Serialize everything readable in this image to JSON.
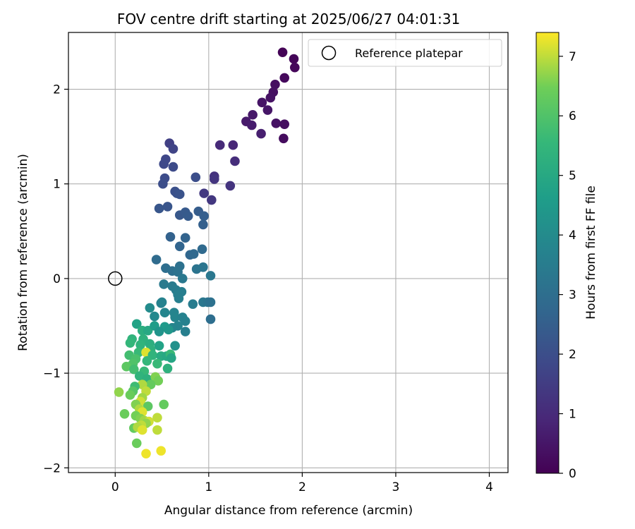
{
  "chart_data": {
    "type": "scatter",
    "title": "FOV centre drift starting at 2025/06/27 04:01:31",
    "xlabel": "Angular distance from reference (arcmin)",
    "ylabel": "Rotation from reference (arcmin)",
    "xlim": [
      -0.5,
      4.2
    ],
    "ylim": [
      -2.05,
      2.6
    ],
    "xticks": [
      0,
      1,
      2,
      3,
      4
    ],
    "xtick_labels": [
      "0",
      "1",
      "2",
      "3",
      "4"
    ],
    "yticks": [
      -2,
      -1,
      0,
      1,
      2
    ],
    "ytick_labels": [
      "−2",
      "−1",
      "0",
      "1",
      "2"
    ],
    "grid": true,
    "legend": {
      "location": "top-right",
      "entries": [
        "Reference platepar"
      ]
    },
    "colormap": "viridis",
    "colorbar": {
      "label": "Hours from first FF file",
      "range": [
        0,
        7.4
      ],
      "ticks": [
        0,
        1,
        2,
        3,
        4,
        5,
        6,
        7
      ],
      "tick_labels": [
        "0",
        "1",
        "2",
        "3",
        "4",
        "5",
        "6",
        "7"
      ]
    },
    "reference_point": {
      "x": 0,
      "y": 0,
      "marker": "open-circle"
    },
    "points": [
      {
        "x": 1.79,
        "y": 2.39,
        "c": 0.05
      },
      {
        "x": 1.91,
        "y": 2.32,
        "c": 0.1
      },
      {
        "x": 1.92,
        "y": 2.23,
        "c": 0.15
      },
      {
        "x": 1.81,
        "y": 2.12,
        "c": 0.2
      },
      {
        "x": 1.71,
        "y": 2.05,
        "c": 0.3
      },
      {
        "x": 1.69,
        "y": 1.97,
        "c": 0.35
      },
      {
        "x": 1.66,
        "y": 1.91,
        "c": 0.4
      },
      {
        "x": 1.57,
        "y": 1.86,
        "c": 0.45
      },
      {
        "x": 1.63,
        "y": 1.78,
        "c": 0.5
      },
      {
        "x": 1.47,
        "y": 1.73,
        "c": 0.55
      },
      {
        "x": 1.4,
        "y": 1.66,
        "c": 0.6
      },
      {
        "x": 1.46,
        "y": 1.62,
        "c": 0.65
      },
      {
        "x": 1.72,
        "y": 1.64,
        "c": 0.4
      },
      {
        "x": 1.81,
        "y": 1.63,
        "c": 0.3
      },
      {
        "x": 1.8,
        "y": 1.48,
        "c": 0.25
      },
      {
        "x": 1.56,
        "y": 1.53,
        "c": 0.7
      },
      {
        "x": 1.12,
        "y": 1.41,
        "c": 1.0
      },
      {
        "x": 1.26,
        "y": 1.41,
        "c": 0.9
      },
      {
        "x": 1.28,
        "y": 1.24,
        "c": 1.1
      },
      {
        "x": 1.06,
        "y": 1.08,
        "c": 1.2
      },
      {
        "x": 1.06,
        "y": 1.05,
        "c": 1.3
      },
      {
        "x": 1.23,
        "y": 0.98,
        "c": 1.25
      },
      {
        "x": 1.03,
        "y": 0.83,
        "c": 1.35
      },
      {
        "x": 0.95,
        "y": 0.9,
        "c": 1.4
      },
      {
        "x": 0.58,
        "y": 1.43,
        "c": 1.6
      },
      {
        "x": 0.62,
        "y": 1.37,
        "c": 1.7
      },
      {
        "x": 0.54,
        "y": 1.26,
        "c": 1.8
      },
      {
        "x": 0.52,
        "y": 1.21,
        "c": 1.85
      },
      {
        "x": 0.62,
        "y": 1.18,
        "c": 1.9
      },
      {
        "x": 0.53,
        "y": 1.06,
        "c": 1.95
      },
      {
        "x": 0.86,
        "y": 1.07,
        "c": 2.0
      },
      {
        "x": 0.51,
        "y": 1.0,
        "c": 2.0
      },
      {
        "x": 0.64,
        "y": 0.92,
        "c": 2.05
      },
      {
        "x": 0.66,
        "y": 0.9,
        "c": 2.1
      },
      {
        "x": 0.69,
        "y": 0.89,
        "c": 2.15
      },
      {
        "x": 0.56,
        "y": 0.76,
        "c": 2.2
      },
      {
        "x": 0.47,
        "y": 0.74,
        "c": 2.25
      },
      {
        "x": 0.69,
        "y": 0.67,
        "c": 2.3
      },
      {
        "x": 0.75,
        "y": 0.7,
        "c": 2.35
      },
      {
        "x": 0.78,
        "y": 0.66,
        "c": 2.4
      },
      {
        "x": 0.89,
        "y": 0.71,
        "c": 2.45
      },
      {
        "x": 0.95,
        "y": 0.66,
        "c": 2.5
      },
      {
        "x": 0.94,
        "y": 0.57,
        "c": 2.55
      },
      {
        "x": 0.59,
        "y": 0.44,
        "c": 2.6
      },
      {
        "x": 0.75,
        "y": 0.43,
        "c": 2.65
      },
      {
        "x": 0.69,
        "y": 0.34,
        "c": 2.7
      },
      {
        "x": 0.8,
        "y": 0.25,
        "c": 2.75
      },
      {
        "x": 0.84,
        "y": 0.26,
        "c": 2.8
      },
      {
        "x": 0.93,
        "y": 0.31,
        "c": 2.85
      },
      {
        "x": 0.44,
        "y": 0.2,
        "c": 2.9
      },
      {
        "x": 0.54,
        "y": 0.11,
        "c": 3.0
      },
      {
        "x": 0.61,
        "y": 0.08,
        "c": 3.05
      },
      {
        "x": 0.69,
        "y": 0.13,
        "c": 3.1
      },
      {
        "x": 0.67,
        "y": 0.07,
        "c": 3.15
      },
      {
        "x": 0.87,
        "y": 0.1,
        "c": 3.2
      },
      {
        "x": 0.94,
        "y": 0.12,
        "c": 3.25
      },
      {
        "x": 1.02,
        "y": 0.03,
        "c": 3.3
      },
      {
        "x": 0.72,
        "y": 0.0,
        "c": 3.35
      },
      {
        "x": 0.52,
        "y": -0.06,
        "c": 3.4
      },
      {
        "x": 0.61,
        "y": -0.08,
        "c": 3.45
      },
      {
        "x": 0.65,
        "y": -0.12,
        "c": 3.5
      },
      {
        "x": 0.71,
        "y": -0.14,
        "c": 3.55
      },
      {
        "x": 0.67,
        "y": -0.17,
        "c": 3.6
      },
      {
        "x": 0.68,
        "y": -0.21,
        "c": 3.6
      },
      {
        "x": 0.49,
        "y": -0.26,
        "c": 3.65
      },
      {
        "x": 0.5,
        "y": -0.25,
        "c": 3.7
      },
      {
        "x": 0.83,
        "y": -0.27,
        "c": 3.5
      },
      {
        "x": 0.94,
        "y": -0.25,
        "c": 3.3
      },
      {
        "x": 0.99,
        "y": -0.25,
        "c": 3.2
      },
      {
        "x": 1.02,
        "y": -0.25,
        "c": 3.1
      },
      {
        "x": 1.02,
        "y": -0.43,
        "c": 3.0
      },
      {
        "x": 0.37,
        "y": -0.31,
        "c": 4.0
      },
      {
        "x": 0.42,
        "y": -0.4,
        "c": 3.9
      },
      {
        "x": 0.53,
        "y": -0.36,
        "c": 3.8
      },
      {
        "x": 0.63,
        "y": -0.36,
        "c": 3.75
      },
      {
        "x": 0.64,
        "y": -0.41,
        "c": 3.8
      },
      {
        "x": 0.72,
        "y": -0.41,
        "c": 3.7
      },
      {
        "x": 0.75,
        "y": -0.45,
        "c": 3.65
      },
      {
        "x": 0.67,
        "y": -0.5,
        "c": 3.75
      },
      {
        "x": 0.61,
        "y": -0.52,
        "c": 3.8
      },
      {
        "x": 0.75,
        "y": -0.56,
        "c": 3.6
      },
      {
        "x": 0.23,
        "y": -0.48,
        "c": 4.8
      },
      {
        "x": 0.29,
        "y": -0.55,
        "c": 5.2
      },
      {
        "x": 0.35,
        "y": -0.55,
        "c": 5.0
      },
      {
        "x": 0.42,
        "y": -0.5,
        "c": 4.6
      },
      {
        "x": 0.53,
        "y": -0.51,
        "c": 4.5
      },
      {
        "x": 0.57,
        "y": -0.54,
        "c": 4.4
      },
      {
        "x": 0.47,
        "y": -0.56,
        "c": 4.3
      },
      {
        "x": 0.18,
        "y": -0.64,
        "c": 5.4
      },
      {
        "x": 0.3,
        "y": -0.64,
        "c": 5.3
      },
      {
        "x": 0.16,
        "y": -0.68,
        "c": 5.5
      },
      {
        "x": 0.27,
        "y": -0.7,
        "c": 5.4
      },
      {
        "x": 0.37,
        "y": -0.69,
        "c": 5.2
      },
      {
        "x": 0.47,
        "y": -0.71,
        "c": 4.8
      },
      {
        "x": 0.64,
        "y": -0.71,
        "c": 4.2
      },
      {
        "x": 0.38,
        "y": -0.75,
        "c": 5.3
      },
      {
        "x": 0.25,
        "y": -0.78,
        "c": 5.6
      },
      {
        "x": 0.15,
        "y": -0.81,
        "c": 5.8
      },
      {
        "x": 0.33,
        "y": -0.78,
        "c": 7.2
      },
      {
        "x": 0.4,
        "y": -0.81,
        "c": 5.4
      },
      {
        "x": 0.49,
        "y": -0.82,
        "c": 5.1
      },
      {
        "x": 0.55,
        "y": -0.82,
        "c": 5.0
      },
      {
        "x": 0.59,
        "y": -0.8,
        "c": 5.6
      },
      {
        "x": 0.6,
        "y": -0.84,
        "c": 4.9
      },
      {
        "x": 0.22,
        "y": -0.85,
        "c": 5.9
      },
      {
        "x": 0.19,
        "y": -0.9,
        "c": 6.0
      },
      {
        "x": 0.34,
        "y": -0.87,
        "c": 5.5
      },
      {
        "x": 0.45,
        "y": -0.9,
        "c": 5.6
      },
      {
        "x": 0.12,
        "y": -0.93,
        "c": 6.2
      },
      {
        "x": 0.2,
        "y": -0.96,
        "c": 5.8
      },
      {
        "x": 0.31,
        "y": -0.98,
        "c": 5.6
      },
      {
        "x": 0.56,
        "y": -0.95,
        "c": 5.3
      },
      {
        "x": 0.26,
        "y": -1.03,
        "c": 5.4
      },
      {
        "x": 0.34,
        "y": -1.06,
        "c": 5.3
      },
      {
        "x": 0.43,
        "y": -1.04,
        "c": 6.6
      },
      {
        "x": 0.46,
        "y": -1.08,
        "c": 6.5
      },
      {
        "x": 0.38,
        "y": -1.12,
        "c": 6.3
      },
      {
        "x": 0.29,
        "y": -1.12,
        "c": 6.9
      },
      {
        "x": 0.21,
        "y": -1.14,
        "c": 5.7
      },
      {
        "x": 0.19,
        "y": -1.19,
        "c": 6.1
      },
      {
        "x": 0.33,
        "y": -1.19,
        "c": 7.0
      },
      {
        "x": 0.04,
        "y": -1.2,
        "c": 6.7
      },
      {
        "x": 0.16,
        "y": -1.23,
        "c": 6.4
      },
      {
        "x": 0.29,
        "y": -1.26,
        "c": 6.8
      },
      {
        "x": 0.27,
        "y": -1.3,
        "c": 7.1
      },
      {
        "x": 0.22,
        "y": -1.33,
        "c": 6.6
      },
      {
        "x": 0.35,
        "y": -1.35,
        "c": 6.2
      },
      {
        "x": 0.52,
        "y": -1.33,
        "c": 6.3
      },
      {
        "x": 0.26,
        "y": -1.38,
        "c": 6.9
      },
      {
        "x": 0.29,
        "y": -1.41,
        "c": 7.2
      },
      {
        "x": 0.1,
        "y": -1.43,
        "c": 6.4
      },
      {
        "x": 0.22,
        "y": -1.45,
        "c": 6.5
      },
      {
        "x": 0.45,
        "y": -1.47,
        "c": 7.0
      },
      {
        "x": 0.27,
        "y": -1.48,
        "c": 6.6
      },
      {
        "x": 0.31,
        "y": -1.5,
        "c": 6.8
      },
      {
        "x": 0.36,
        "y": -1.51,
        "c": 7.1
      },
      {
        "x": 0.33,
        "y": -1.53,
        "c": 6.7
      },
      {
        "x": 0.28,
        "y": -1.55,
        "c": 7.0
      },
      {
        "x": 0.2,
        "y": -1.58,
        "c": 6.3
      },
      {
        "x": 0.24,
        "y": -1.57,
        "c": 6.9
      },
      {
        "x": 0.29,
        "y": -1.6,
        "c": 7.2
      },
      {
        "x": 0.45,
        "y": -1.6,
        "c": 7.0
      },
      {
        "x": 0.23,
        "y": -1.74,
        "c": 6.4
      },
      {
        "x": 0.49,
        "y": -1.82,
        "c": 7.3
      },
      {
        "x": 0.33,
        "y": -1.85,
        "c": 7.3
      }
    ]
  }
}
